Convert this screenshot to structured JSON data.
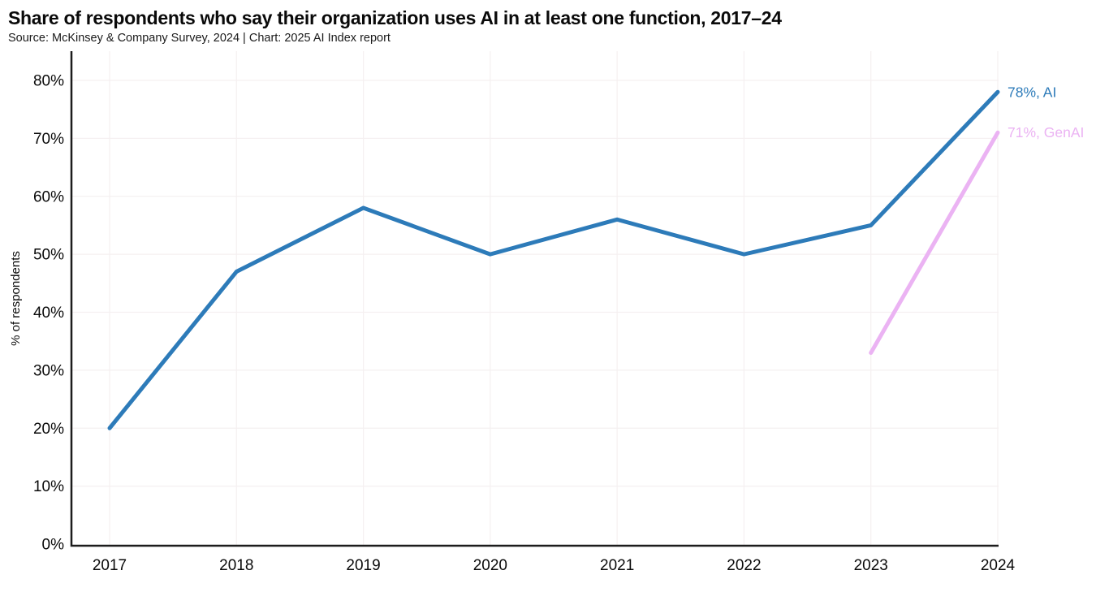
{
  "header": {
    "title": "Share of respondents who say their organization uses AI in at least one function, 2017–24",
    "source": "Source: McKinsey & Company Survey, 2024 | Chart: 2025 AI Index report"
  },
  "chart_data": {
    "type": "line",
    "x": [
      "2017",
      "2018",
      "2019",
      "2020",
      "2021",
      "2022",
      "2023",
      "2024"
    ],
    "series": [
      {
        "name": "AI",
        "color": "#2d7bb9",
        "values": [
          20,
          47,
          58,
          50,
          56,
          50,
          55,
          78
        ],
        "end_label": "78%, AI"
      },
      {
        "name": "GenAI",
        "color": "#ebb3f3",
        "values": [
          null,
          null,
          null,
          null,
          null,
          null,
          33,
          71
        ],
        "end_label": "71%, GenAI"
      }
    ],
    "title": "Share of respondents who say their organization uses AI in at least one function, 2017–24",
    "xlabel": "",
    "ylabel": "% of respondents",
    "ylim": [
      0,
      80
    ],
    "ytick_step": 10,
    "ytick_format": "percent",
    "grid": true,
    "legend_position": "end-of-line labels",
    "colors": {
      "axis": "#1c1c1c",
      "grid": "#f5f0f1",
      "tick_text": "#0a0a0a"
    }
  }
}
